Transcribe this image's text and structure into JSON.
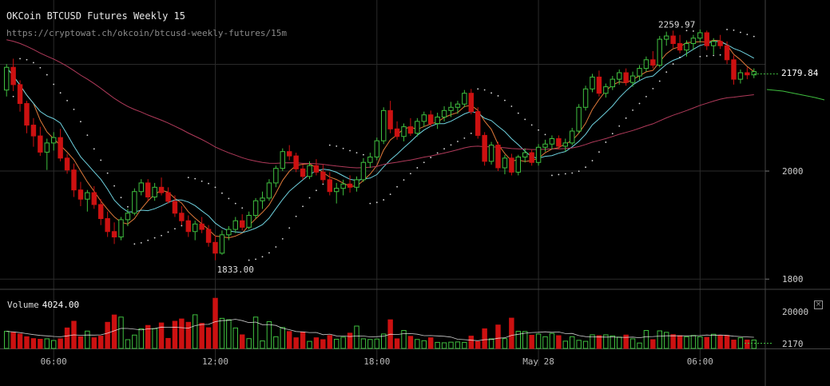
{
  "header": {
    "title": "OKCoin BTCUSD Futures Weekly 15",
    "url": "https://cryptowat.ch/okcoin/btcusd-weekly-futures/15m"
  },
  "volume_panel": {
    "label": "Volume",
    "value": "4024.00",
    "close_symbol": "×"
  },
  "colors": {
    "up": "#3fbf3f",
    "down": "#cc1111",
    "sma_fast": "#e07a3a",
    "sma_mid": "#6fd3e0",
    "sma_slow": "#b03a5a",
    "sar": "#dddddd",
    "volume_ma": "#ffffff",
    "grid": "#2a2a2a"
  },
  "chart_data": {
    "type": "candlestick",
    "title": "OKCoin BTCUSD Futures Weekly 15",
    "interval": "15m",
    "ylim": [
      1790,
      2290
    ],
    "price_ticks": [
      1800,
      2000
    ],
    "last_price_label": "2179.84",
    "high_annotation": {
      "label": "2259.97",
      "value": 2259.97
    },
    "low_annotation": {
      "label": "1833.00",
      "value": 1833.0
    },
    "time_labels": [
      "06:00",
      "12:00",
      "18:00",
      "May 28",
      "06:00"
    ],
    "time_label_bars": [
      7,
      31,
      55,
      79,
      103
    ],
    "volume_ticks": [
      "20000",
      "2170"
    ],
    "volume_ylim": [
      0,
      26000
    ],
    "candles": [
      [
        2150,
        2198,
        2138,
        2192
      ],
      [
        2192,
        2208,
        2148,
        2160
      ],
      [
        2160,
        2168,
        2110,
        2125
      ],
      [
        2125,
        2130,
        2070,
        2085
      ],
      [
        2085,
        2098,
        2045,
        2065
      ],
      [
        2065,
        2082,
        2028,
        2035
      ],
      [
        2035,
        2060,
        2002,
        2052
      ],
      [
        2052,
        2072,
        2038,
        2062
      ],
      [
        2062,
        2078,
        2018,
        2024
      ],
      [
        2024,
        2032,
        1995,
        2002
      ],
      [
        2002,
        2014,
        1952,
        1965
      ],
      [
        1965,
        1980,
        1935,
        1948
      ],
      [
        1948,
        1965,
        1925,
        1960
      ],
      [
        1960,
        1972,
        1930,
        1938
      ],
      [
        1938,
        1948,
        1900,
        1912
      ],
      [
        1912,
        1925,
        1878,
        1888
      ],
      [
        1888,
        1905,
        1865,
        1878
      ],
      [
        1878,
        1915,
        1872,
        1910
      ],
      [
        1910,
        1930,
        1898,
        1922
      ],
      [
        1922,
        1968,
        1918,
        1962
      ],
      [
        1962,
        1985,
        1955,
        1978
      ],
      [
        1978,
        1985,
        1945,
        1952
      ],
      [
        1952,
        1978,
        1945,
        1970
      ],
      [
        1970,
        1988,
        1955,
        1960
      ],
      [
        1960,
        1970,
        1940,
        1944
      ],
      [
        1944,
        1955,
        1915,
        1922
      ],
      [
        1922,
        1935,
        1900,
        1908
      ],
      [
        1908,
        1918,
        1878,
        1888
      ],
      [
        1888,
        1908,
        1872,
        1902
      ],
      [
        1902,
        1915,
        1885,
        1892
      ],
      [
        1892,
        1900,
        1860,
        1868
      ],
      [
        1868,
        1880,
        1835,
        1848
      ],
      [
        1848,
        1890,
        1845,
        1882
      ],
      [
        1882,
        1898,
        1872,
        1892
      ],
      [
        1892,
        1915,
        1885,
        1908
      ],
      [
        1908,
        1920,
        1890,
        1896
      ],
      [
        1896,
        1925,
        1892,
        1918
      ],
      [
        1918,
        1950,
        1912,
        1945
      ],
      [
        1945,
        1962,
        1930,
        1950
      ],
      [
        1950,
        1985,
        1945,
        1978
      ],
      [
        1978,
        2010,
        1970,
        2005
      ],
      [
        2005,
        2042,
        2000,
        2036
      ],
      [
        2036,
        2048,
        2020,
        2028
      ],
      [
        2028,
        2034,
        1998,
        2004
      ],
      [
        2004,
        2012,
        1984,
        1990
      ],
      [
        1990,
        2018,
        1985,
        2010
      ],
      [
        2010,
        2022,
        1992,
        1998
      ],
      [
        1998,
        2012,
        1978,
        1984
      ],
      [
        1984,
        1998,
        1955,
        1962
      ],
      [
        1962,
        1978,
        1940,
        1968
      ],
      [
        1968,
        1984,
        1955,
        1976
      ],
      [
        1976,
        1992,
        1960,
        1970
      ],
      [
        1970,
        1990,
        1962,
        1984
      ],
      [
        1984,
        2024,
        1980,
        2016
      ],
      [
        2016,
        2034,
        2006,
        2026
      ],
      [
        2026,
        2062,
        2020,
        2056
      ],
      [
        2056,
        2118,
        2050,
        2112
      ],
      [
        2112,
        2130,
        2070,
        2078
      ],
      [
        2078,
        2092,
        2058,
        2064
      ],
      [
        2064,
        2088,
        2055,
        2082
      ],
      [
        2082,
        2098,
        2065,
        2070
      ],
      [
        2070,
        2098,
        2064,
        2092
      ],
      [
        2092,
        2110,
        2082,
        2104
      ],
      [
        2104,
        2112,
        2082,
        2088
      ],
      [
        2088,
        2108,
        2078,
        2100
      ],
      [
        2100,
        2120,
        2092,
        2112
      ],
      [
        2112,
        2128,
        2100,
        2118
      ],
      [
        2118,
        2130,
        2106,
        2124
      ],
      [
        2124,
        2150,
        2118,
        2144
      ],
      [
        2144,
        2152,
        2105,
        2110
      ],
      [
        2110,
        2118,
        2060,
        2066
      ],
      [
        2066,
        2072,
        2010,
        2018
      ],
      [
        2018,
        2054,
        2012,
        2048
      ],
      [
        2048,
        2054,
        2000,
        2006
      ],
      [
        2006,
        2030,
        1994,
        2024
      ],
      [
        2024,
        2032,
        1992,
        1998
      ],
      [
        1998,
        2030,
        1992,
        2026
      ],
      [
        2026,
        2042,
        2016,
        2034
      ],
      [
        2034,
        2040,
        2010,
        2016
      ],
      [
        2016,
        2050,
        2010,
        2044
      ],
      [
        2044,
        2058,
        2036,
        2050
      ],
      [
        2050,
        2066,
        2040,
        2060
      ],
      [
        2060,
        2066,
        2040,
        2046
      ],
      [
        2046,
        2060,
        2036,
        2052
      ],
      [
        2052,
        2080,
        2048,
        2074
      ],
      [
        2074,
        2124,
        2070,
        2118
      ],
      [
        2118,
        2158,
        2112,
        2152
      ],
      [
        2152,
        2180,
        2146,
        2174
      ],
      [
        2174,
        2186,
        2138,
        2144
      ],
      [
        2144,
        2162,
        2136,
        2156
      ],
      [
        2156,
        2176,
        2150,
        2170
      ],
      [
        2170,
        2188,
        2160,
        2182
      ],
      [
        2182,
        2190,
        2158,
        2164
      ],
      [
        2164,
        2184,
        2156,
        2176
      ],
      [
        2176,
        2196,
        2168,
        2190
      ],
      [
        2190,
        2212,
        2184,
        2206
      ],
      [
        2206,
        2222,
        2190,
        2196
      ],
      [
        2196,
        2250,
        2192,
        2244
      ],
      [
        2244,
        2258,
        2232,
        2250
      ],
      [
        2250,
        2260,
        2228,
        2236
      ],
      [
        2236,
        2252,
        2218,
        2224
      ],
      [
        2224,
        2242,
        2212,
        2236
      ],
      [
        2236,
        2252,
        2224,
        2246
      ],
      [
        2246,
        2262,
        2238,
        2256
      ],
      [
        2256,
        2260,
        2224,
        2232
      ],
      [
        2232,
        2246,
        2216,
        2240
      ],
      [
        2240,
        2252,
        2226,
        2232
      ],
      [
        2232,
        2240,
        2198,
        2206
      ],
      [
        2206,
        2214,
        2160,
        2170
      ],
      [
        2170,
        2188,
        2162,
        2182
      ],
      [
        2182,
        2192,
        2170,
        2178
      ],
      [
        2178,
        2190,
        2172,
        2184
      ]
    ],
    "volume": [
      8200,
      7600,
      6900,
      5600,
      4700,
      4400,
      4600,
      3800,
      4600,
      9800,
      13000,
      5600,
      8300,
      5100,
      5900,
      12500,
      16000,
      15000,
      4200,
      6400,
      9400,
      11000,
      9500,
      12200,
      4800,
      13000,
      14100,
      12500,
      16100,
      12000,
      9900,
      24000,
      14400,
      13700,
      9800,
      6500,
      4700,
      15000,
      3600,
      12800,
      5600,
      10000,
      8100,
      5100,
      7800,
      3400,
      5100,
      4200,
      6200,
      4400,
      5400,
      7300,
      10700,
      4600,
      4300,
      4500,
      6900,
      13700,
      4600,
      8600,
      5800,
      4300,
      3700,
      5100,
      2900,
      2700,
      3000,
      3100,
      2900,
      5900,
      3300,
      9400,
      4600,
      11200,
      4700,
      14500,
      8200,
      8100,
      6300,
      6900,
      5600,
      7200,
      6100,
      3500,
      5600,
      3900,
      3400,
      6500,
      6100,
      6500,
      6000,
      5400,
      6400,
      4600,
      2600,
      8600,
      4200,
      8400,
      7700,
      6600,
      6100,
      5600,
      6200,
      5600,
      5300,
      6800,
      6100,
      6200,
      4000,
      5100,
      4024,
      4024
    ]
  }
}
